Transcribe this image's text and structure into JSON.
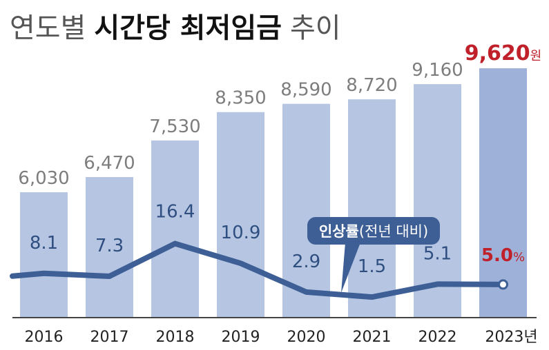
{
  "chart_data": {
    "type": "bar",
    "title_prefix": "연도별",
    "title_bold": "시간당 최저임금",
    "title_suffix": "추이",
    "categories": [
      "2016",
      "2017",
      "2018",
      "2019",
      "2020",
      "2021",
      "2022",
      "2023"
    ],
    "last_category_suffix": "년",
    "series": [
      {
        "name": "시간당 최저임금",
        "unit": "원",
        "values": [
          6030,
          6470,
          7530,
          8350,
          8590,
          8720,
          9160,
          9620
        ],
        "labels": [
          "6,030",
          "6,470",
          "7,530",
          "8,350",
          "8,590",
          "8,720",
          "9,160",
          "9,620"
        ]
      },
      {
        "name": "인상률",
        "unit": "%",
        "values": [
          8.1,
          7.3,
          16.4,
          10.9,
          2.9,
          1.5,
          5.1,
          5.0
        ],
        "labels": [
          "8.1",
          "7.3",
          "16.4",
          "10.9",
          "2.9",
          "1.5",
          "5.1",
          "5.0"
        ]
      }
    ],
    "legend_bold": "인상률",
    "legend_rest": "(전년 대비)",
    "colors": {
      "bar": "#b5c5e2",
      "bar_highlight": "#9eb2d9",
      "line": "#3d5f95",
      "highlight_text": "#c0202a",
      "value_text": "#7d7d7d",
      "rate_text": "#2f4f80",
      "callout": "#3d5f95"
    }
  }
}
